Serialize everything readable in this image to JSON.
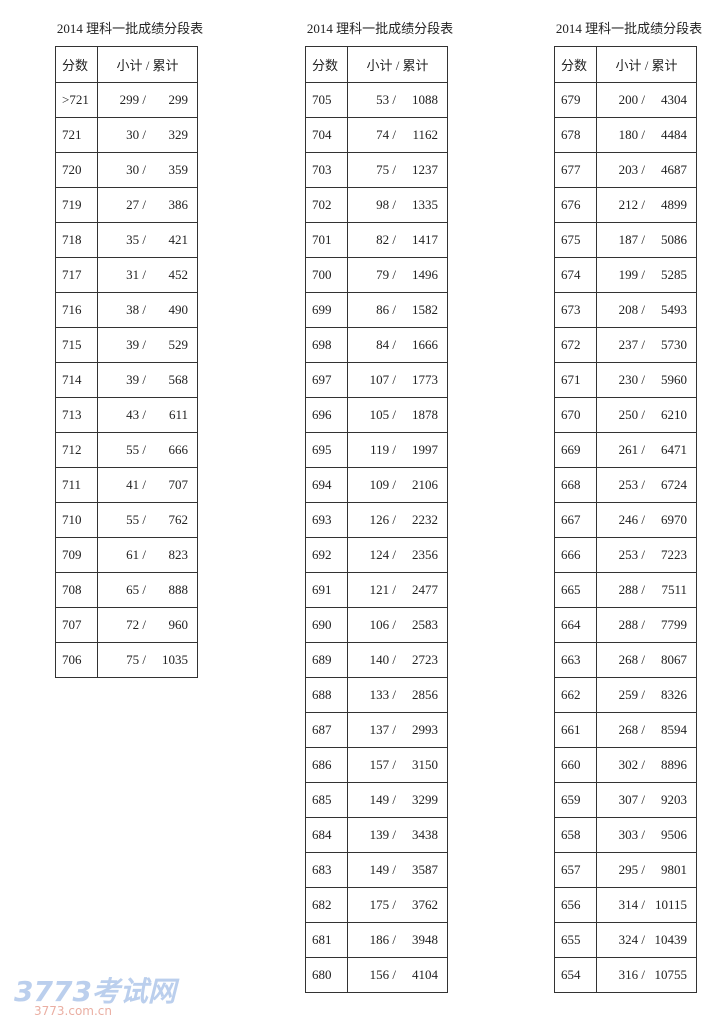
{
  "tables": [
    {
      "title": "2014 理科一批成绩分段表",
      "header": [
        "分数",
        "小计 / 累计"
      ],
      "rows": [
        [
          ">721",
          "299 /",
          "299"
        ],
        [
          "721",
          "30 /",
          "329"
        ],
        [
          "720",
          "30 /",
          "359"
        ],
        [
          "719",
          "27 /",
          "386"
        ],
        [
          "718",
          "35 /",
          "421"
        ],
        [
          "717",
          "31 /",
          "452"
        ],
        [
          "716",
          "38 /",
          "490"
        ],
        [
          "715",
          "39 /",
          "529"
        ],
        [
          "714",
          "39 /",
          "568"
        ],
        [
          "713",
          "43 /",
          "611"
        ],
        [
          "712",
          "55 /",
          "666"
        ],
        [
          "711",
          "41 /",
          "707"
        ],
        [
          "710",
          "55 /",
          "762"
        ],
        [
          "709",
          "61 /",
          "823"
        ],
        [
          "708",
          "65 /",
          "888"
        ],
        [
          "707",
          "72 /",
          "960"
        ],
        [
          "706",
          "75 /",
          "1035"
        ]
      ]
    },
    {
      "title": "2014 理科一批成绩分段表",
      "header": [
        "分数",
        "小计 / 累计"
      ],
      "rows": [
        [
          "705",
          "53 /",
          "1088"
        ],
        [
          "704",
          "74 /",
          "1162"
        ],
        [
          "703",
          "75 /",
          "1237"
        ],
        [
          "702",
          "98 /",
          "1335"
        ],
        [
          "701",
          "82 /",
          "1417"
        ],
        [
          "700",
          "79 /",
          "1496"
        ],
        [
          "699",
          "86 /",
          "1582"
        ],
        [
          "698",
          "84 /",
          "1666"
        ],
        [
          "697",
          "107 /",
          "1773"
        ],
        [
          "696",
          "105 /",
          "1878"
        ],
        [
          "695",
          "119 /",
          "1997"
        ],
        [
          "694",
          "109 /",
          "2106"
        ],
        [
          "693",
          "126 /",
          "2232"
        ],
        [
          "692",
          "124 /",
          "2356"
        ],
        [
          "691",
          "121 /",
          "2477"
        ],
        [
          "690",
          "106 /",
          "2583"
        ],
        [
          "689",
          "140 /",
          "2723"
        ],
        [
          "688",
          "133 /",
          "2856"
        ],
        [
          "687",
          "137 /",
          "2993"
        ],
        [
          "686",
          "157 /",
          "3150"
        ],
        [
          "685",
          "149 /",
          "3299"
        ],
        [
          "684",
          "139 /",
          "3438"
        ],
        [
          "683",
          "149 /",
          "3587"
        ],
        [
          "682",
          "175 /",
          "3762"
        ],
        [
          "681",
          "186 /",
          "3948"
        ],
        [
          "680",
          "156 /",
          "4104"
        ]
      ]
    },
    {
      "title": "2014 理科一批成绩分段表",
      "header": [
        "分数",
        "小计 / 累计"
      ],
      "rows": [
        [
          "679",
          "200 /",
          "4304"
        ],
        [
          "678",
          "180 /",
          "4484"
        ],
        [
          "677",
          "203 /",
          "4687"
        ],
        [
          "676",
          "212 /",
          "4899"
        ],
        [
          "675",
          "187 /",
          "5086"
        ],
        [
          "674",
          "199 /",
          "5285"
        ],
        [
          "673",
          "208 /",
          "5493"
        ],
        [
          "672",
          "237 /",
          "5730"
        ],
        [
          "671",
          "230 /",
          "5960"
        ],
        [
          "670",
          "250 /",
          "6210"
        ],
        [
          "669",
          "261 /",
          "6471"
        ],
        [
          "668",
          "253 /",
          "6724"
        ],
        [
          "667",
          "246 /",
          "6970"
        ],
        [
          "666",
          "253 /",
          "7223"
        ],
        [
          "665",
          "288 /",
          "7511"
        ],
        [
          "664",
          "288 /",
          "7799"
        ],
        [
          "663",
          "268 /",
          "8067"
        ],
        [
          "662",
          "259 /",
          "8326"
        ],
        [
          "661",
          "268 /",
          "8594"
        ],
        [
          "660",
          "302 /",
          "8896"
        ],
        [
          "659",
          "307 /",
          "9203"
        ],
        [
          "658",
          "303 /",
          "9506"
        ],
        [
          "657",
          "295 /",
          "9801"
        ],
        [
          "656",
          "314 /",
          "10115"
        ],
        [
          "655",
          "324 /",
          "10439"
        ],
        [
          "654",
          "316 /",
          "10755"
        ]
      ]
    }
  ],
  "watermark": {
    "logo": "3773考试网",
    "url": "3773.com.cn"
  }
}
